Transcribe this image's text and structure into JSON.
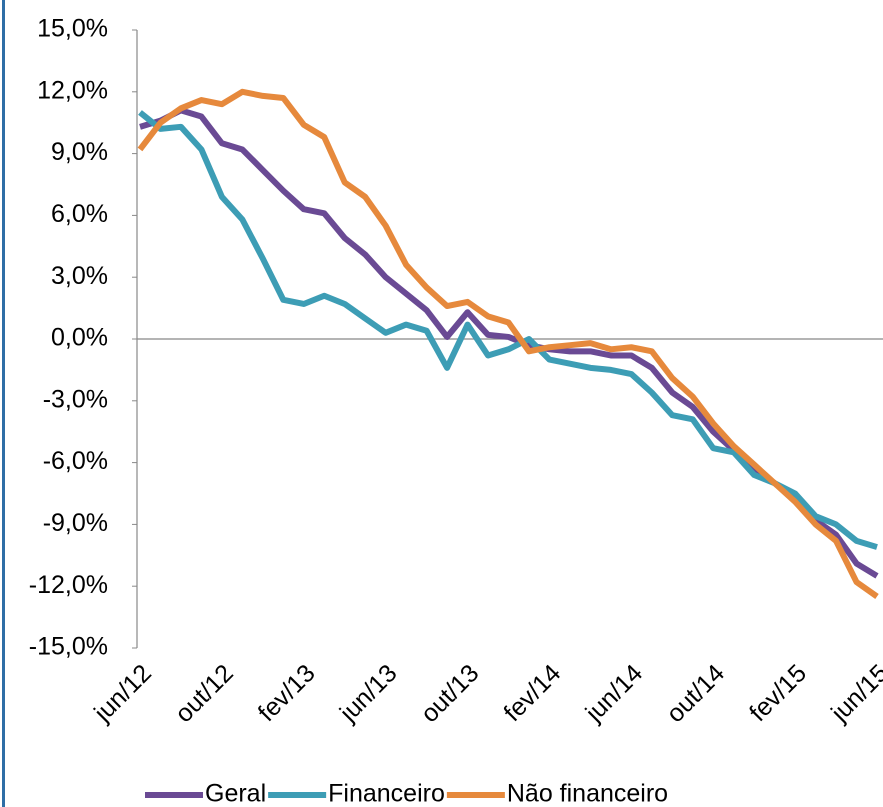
{
  "chart_data": {
    "type": "line",
    "categories": [
      "jun/12",
      null,
      null,
      null,
      "out/12",
      null,
      null,
      null,
      "fev/13",
      null,
      null,
      null,
      "jun/13",
      null,
      null,
      null,
      "out/13",
      null,
      null,
      null,
      "fev/14",
      null,
      null,
      null,
      "jun/14",
      null,
      null,
      null,
      "out/14",
      null,
      null,
      null,
      "fev/15",
      null,
      null,
      null,
      "jun/15"
    ],
    "series": [
      {
        "name": "Geral",
        "color": "#6a4a94",
        "values": [
          10.3,
          10.6,
          11.1,
          10.8,
          9.5,
          9.2,
          8.2,
          7.2,
          6.3,
          6.1,
          4.9,
          4.1,
          3.0,
          2.2,
          1.4,
          0.1,
          1.3,
          0.2,
          0.1,
          -0.3,
          -0.5,
          -0.6,
          -0.6,
          -0.8,
          -0.8,
          -1.4,
          -2.6,
          -3.3,
          -4.5,
          -5.4,
          -6.3,
          -7.0,
          -7.8,
          -8.8,
          -9.5,
          -10.9,
          -11.5
        ]
      },
      {
        "name": "Financeiro",
        "color": "#3d9db5",
        "values": [
          11.0,
          10.2,
          10.3,
          9.2,
          6.9,
          5.8,
          3.9,
          1.9,
          1.7,
          2.1,
          1.7,
          1.0,
          0.3,
          0.7,
          0.4,
          -1.4,
          0.7,
          -0.8,
          -0.5,
          0.0,
          -1.0,
          -1.2,
          -1.4,
          -1.5,
          -1.7,
          -2.6,
          -3.7,
          -3.9,
          -5.3,
          -5.5,
          -6.6,
          -7.0,
          -7.5,
          -8.6,
          -9.0,
          -9.8,
          -10.1
        ]
      },
      {
        "name": "Não financeiro",
        "color": "#e6893c",
        "values": [
          9.2,
          10.5,
          11.2,
          11.6,
          11.4,
          12.0,
          11.8,
          11.7,
          10.4,
          9.8,
          7.6,
          6.9,
          5.5,
          3.6,
          2.5,
          1.6,
          1.8,
          1.1,
          0.8,
          -0.6,
          -0.4,
          -0.3,
          -0.2,
          -0.5,
          -0.4,
          -0.6,
          -1.9,
          -2.8,
          -4.1,
          -5.2,
          -6.1,
          -7.0,
          -7.9,
          -9.0,
          -9.8,
          -11.8,
          -12.5
        ]
      }
    ],
    "ylim": [
      -15,
      15
    ],
    "yticks": [
      {
        "value": 15,
        "label": "15,0%"
      },
      {
        "value": 12,
        "label": "12,0%"
      },
      {
        "value": 9,
        "label": "9,0%"
      },
      {
        "value": 6,
        "label": "6,0%"
      },
      {
        "value": 3,
        "label": "3,0%"
      },
      {
        "value": 0,
        "label": "0,0%"
      },
      {
        "value": -3,
        "label": "-3,0%"
      },
      {
        "value": -6,
        "label": "-6,0%"
      },
      {
        "value": -9,
        "label": "-9,0%"
      },
      {
        "value": -12,
        "label": "-12,0%"
      },
      {
        "value": -15,
        "label": "-15,0%"
      }
    ]
  }
}
